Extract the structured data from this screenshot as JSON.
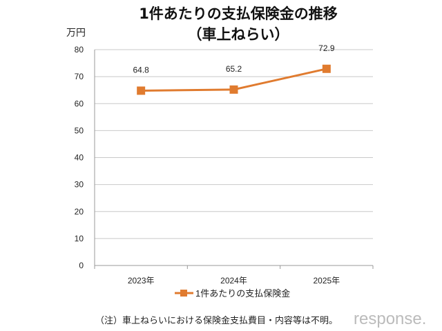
{
  "chart_data": {
    "type": "line",
    "title": "1件あたりの支払保険金の推移",
    "subtitle": "（車上ねらい）",
    "ylabel": "万円",
    "xlabel": "",
    "categories": [
      "2023年",
      "2024年",
      "2025年"
    ],
    "series": [
      {
        "name": "1件あたりの支払保険金",
        "values": [
          64.8,
          65.2,
          72.9
        ],
        "color": "#E07B2F"
      }
    ],
    "ylim": [
      0,
      80
    ],
    "yticks": [
      0,
      10,
      20,
      30,
      40,
      50,
      60,
      70,
      80
    ],
    "grid": true,
    "legend_position": "bottom",
    "data_labels": [
      "64.8",
      "65.2",
      "72.9"
    ]
  },
  "note": "（注）車上ねらいにおける保険金支払費目・内容等は不明。",
  "watermark": "response."
}
